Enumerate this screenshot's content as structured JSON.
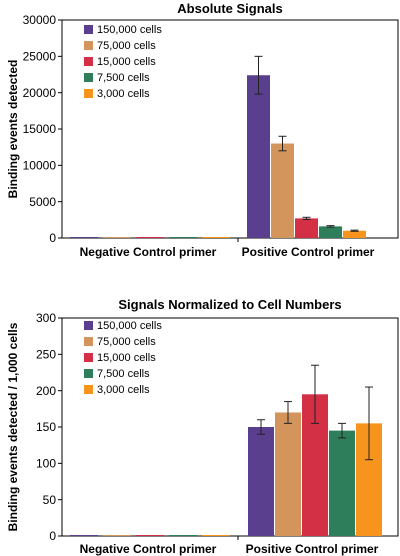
{
  "chart_data": [
    {
      "type": "bar",
      "title": "Absolute Signals",
      "xlabel": "",
      "ylabel": "Binding events detected",
      "ylim": [
        0,
        30000
      ],
      "yticks": [
        0,
        5000,
        10000,
        15000,
        20000,
        25000,
        30000
      ],
      "categories": [
        "Negative Control primer",
        "Positive Control primer"
      ],
      "legend": "top-left",
      "grid": false,
      "series": [
        {
          "name": "150,000 cells",
          "color": "#5b3f8f",
          "values": [
            0,
            22400
          ],
          "errors": [
            0,
            2600
          ]
        },
        {
          "name": "75,000 cells",
          "color": "#d4955c",
          "values": [
            0,
            13000
          ],
          "errors": [
            0,
            1000
          ]
        },
        {
          "name": "15,000 cells",
          "color": "#d32f45",
          "values": [
            0,
            2700
          ],
          "errors": [
            0,
            150
          ]
        },
        {
          "name": "7,500 cells",
          "color": "#2e7d5b",
          "values": [
            0,
            1600
          ],
          "errors": [
            0,
            100
          ]
        },
        {
          "name": "3,000 cells",
          "color": "#f7941d",
          "values": [
            0,
            1000
          ],
          "errors": [
            0,
            80
          ]
        }
      ]
    },
    {
      "type": "bar",
      "title": "Signals Normalized to Cell Numbers",
      "xlabel": "",
      "ylabel": "Binding events detected / 1,000 cells",
      "ylim": [
        0,
        300
      ],
      "yticks": [
        0,
        50,
        100,
        150,
        200,
        250,
        300
      ],
      "categories": [
        "Negative Control primer",
        "Positive Control primer"
      ],
      "legend": "top-center",
      "grid": false,
      "series": [
        {
          "name": "150,000 cells",
          "color": "#5b3f8f",
          "values": [
            0,
            150
          ],
          "errors": [
            0,
            10
          ]
        },
        {
          "name": "75,000 cells",
          "color": "#d4955c",
          "values": [
            0,
            170
          ],
          "errors": [
            0,
            15
          ]
        },
        {
          "name": "15,000 cells",
          "color": "#d32f45",
          "values": [
            0,
            195
          ],
          "errors": [
            0,
            40
          ]
        },
        {
          "name": "7,500 cells",
          "color": "#2e7d5b",
          "values": [
            0,
            145
          ],
          "errors": [
            0,
            10
          ]
        },
        {
          "name": "3,000 cells",
          "color": "#f7941d",
          "values": [
            0,
            155
          ],
          "errors": [
            0,
            50
          ]
        }
      ]
    }
  ]
}
